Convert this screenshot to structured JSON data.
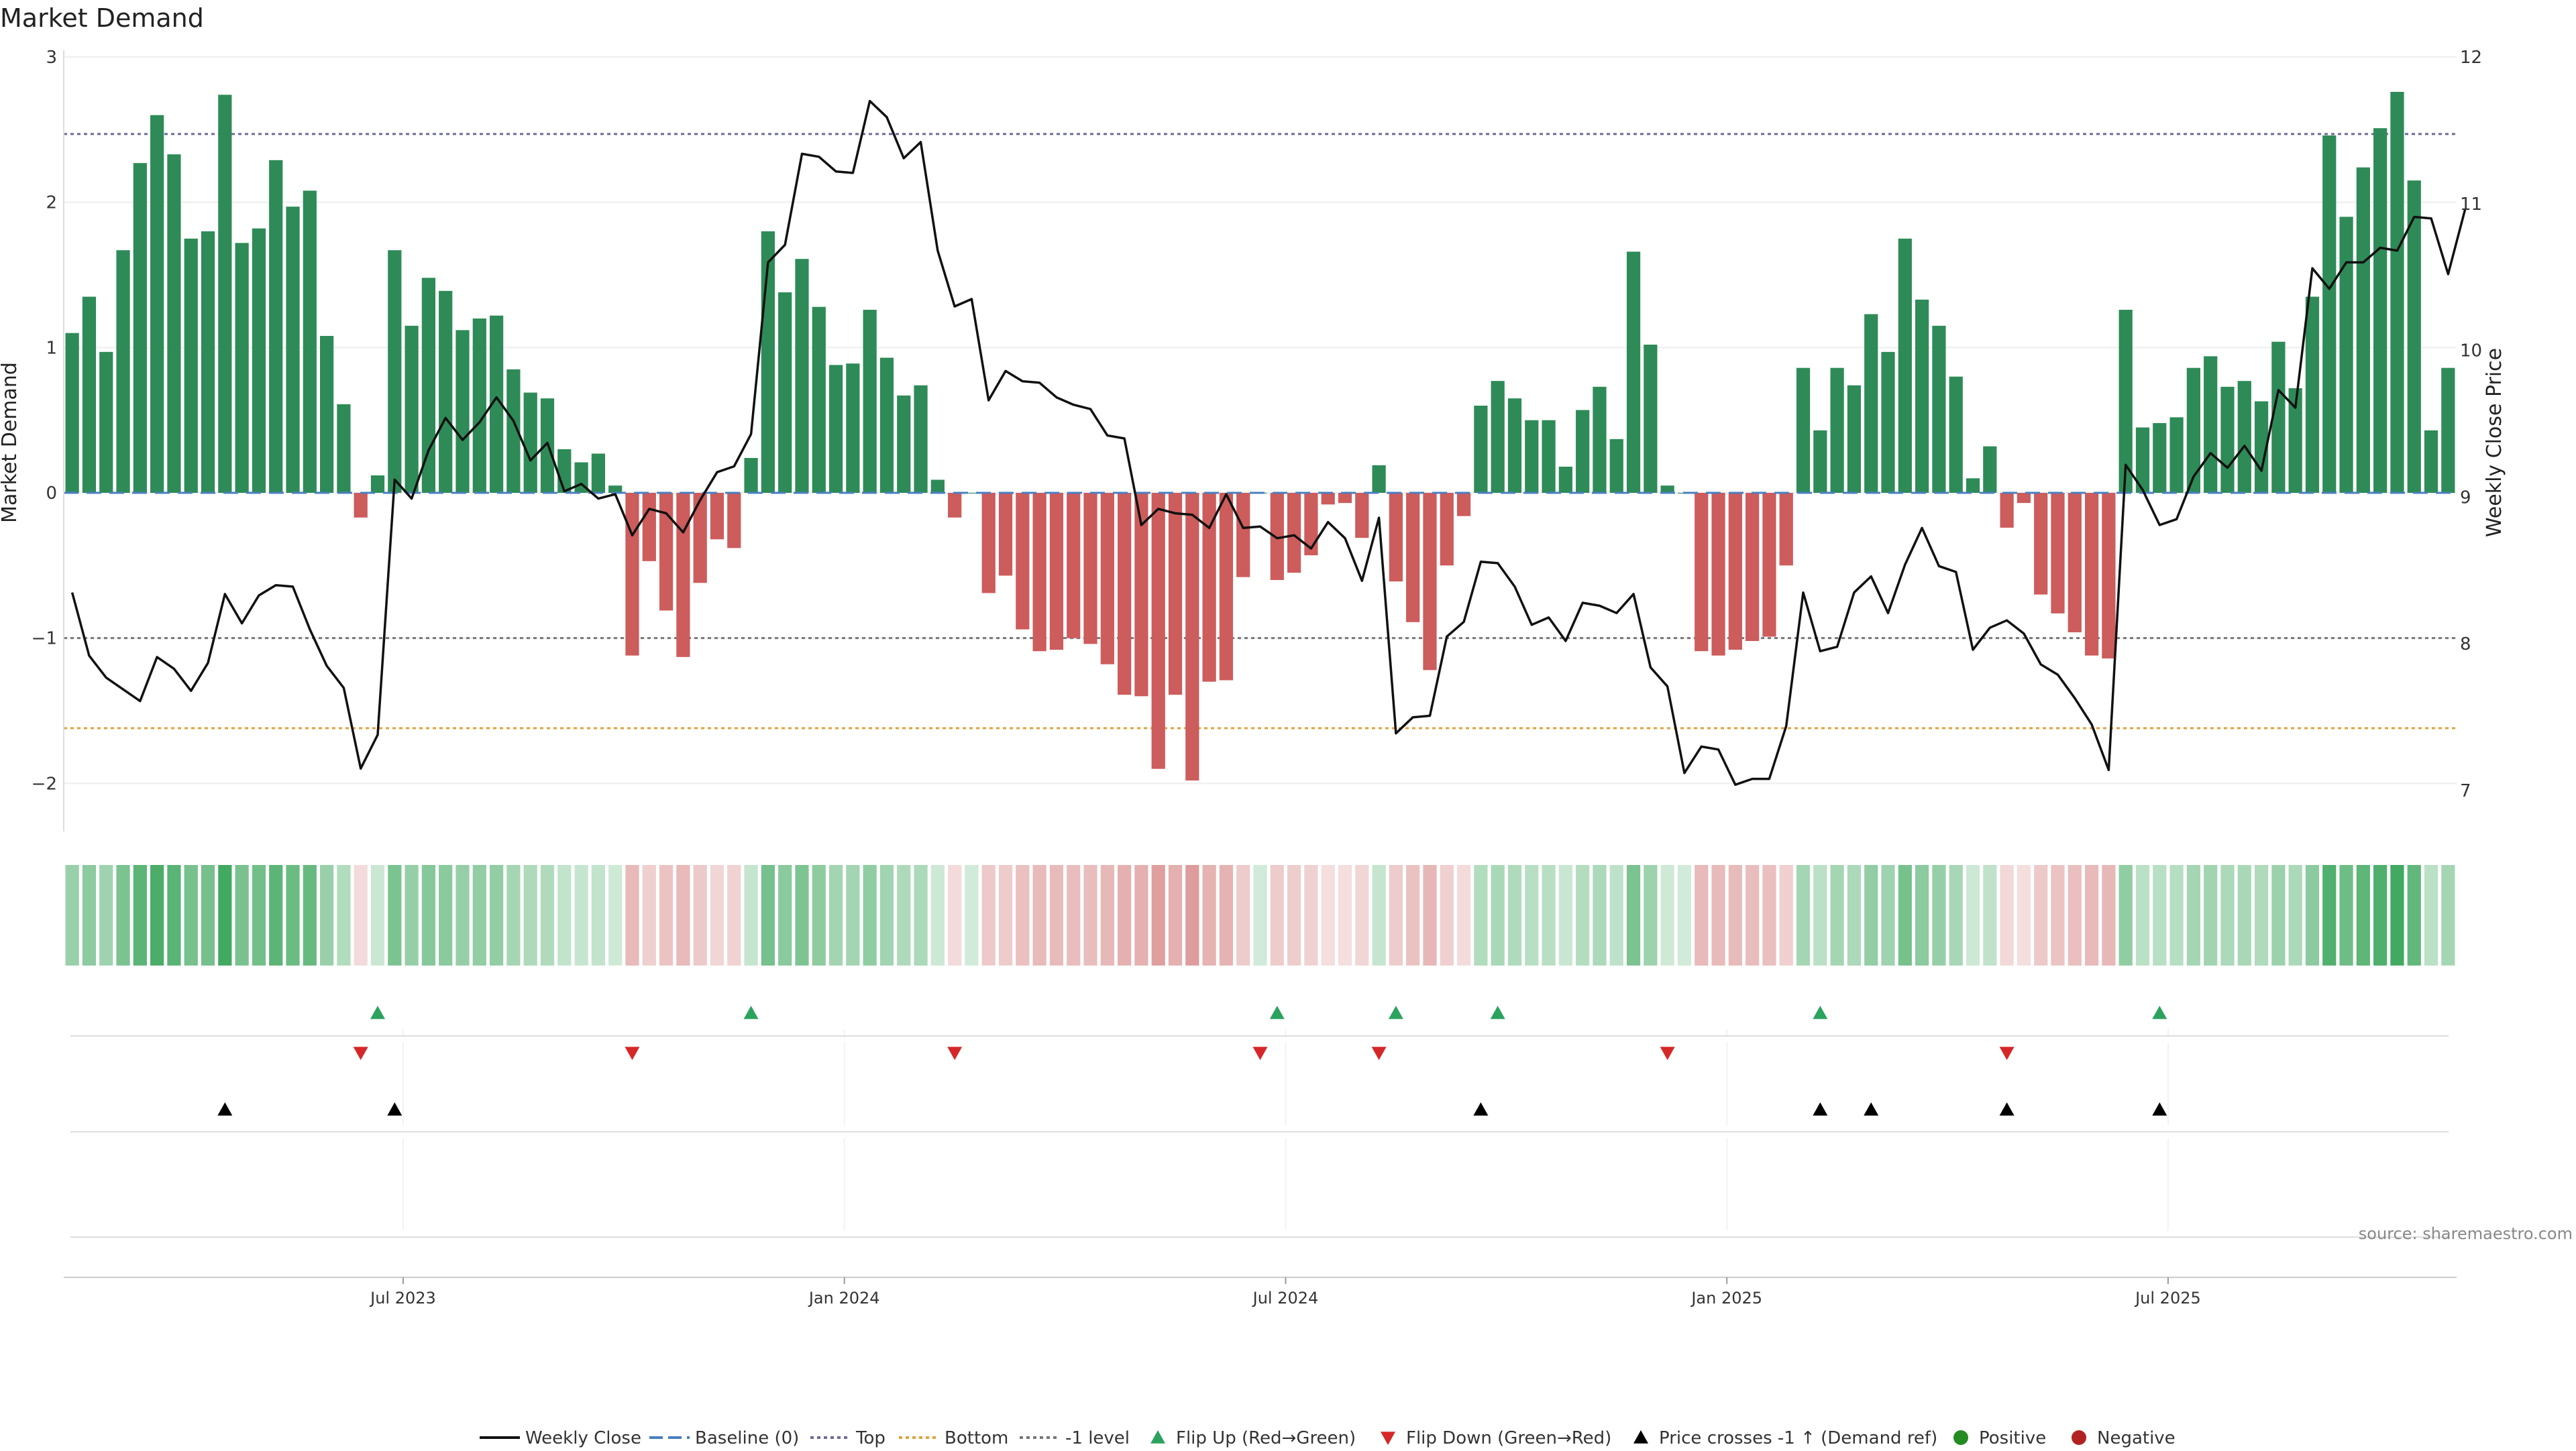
{
  "chart_data": {
    "type": "bar",
    "title": "Market Demand",
    "ylabel": "Market Demand",
    "y2label": "Weekly Close Price",
    "ylim": [
      -2.1,
      3.0
    ],
    "y2lim": [
      6.95,
      12.0
    ],
    "yticks": [
      "3",
      "2",
      "1",
      "0",
      "−1",
      "−2"
    ],
    "y2ticks": [
      "12",
      "11",
      "10",
      "9",
      "8",
      "7"
    ],
    "xticks": [
      "Jul 2023",
      "Jan 2024",
      "Jul 2024",
      "Jan 2025",
      "Jul 2025"
    ],
    "reference_lines": {
      "top": 2.47,
      "bottom": -1.62,
      "minus_one": -1.0,
      "baseline": 0
    },
    "demand": [
      1.1,
      1.35,
      0.97,
      1.67,
      2.27,
      2.6,
      2.33,
      1.75,
      1.8,
      2.74,
      1.72,
      1.82,
      2.29,
      1.97,
      2.08,
      1.08,
      0.61,
      -0.17,
      0.12,
      1.67,
      1.15,
      1.48,
      1.39,
      1.12,
      1.2,
      1.22,
      0.85,
      0.69,
      0.65,
      0.3,
      0.21,
      0.27,
      0.05,
      -1.12,
      -0.47,
      -0.81,
      -1.13,
      -0.62,
      -0.32,
      -0.38,
      0.24,
      1.8,
      1.38,
      1.61,
      1.28,
      0.88,
      0.89,
      1.26,
      0.93,
      0.67,
      0.74,
      0.09,
      -0.17,
      0.0,
      -0.69,
      -0.57,
      -0.94,
      -1.09,
      -1.08,
      -1.0,
      -1.04,
      -1.18,
      -1.39,
      -1.4,
      -1.9,
      -1.39,
      -1.98,
      -1.3,
      -1.29,
      -0.58,
      0.0,
      -0.6,
      -0.55,
      -0.43,
      -0.08,
      -0.07,
      -0.31,
      0.19,
      -0.61,
      -0.89,
      -1.22,
      -0.5,
      -0.16,
      0.6,
      0.77,
      0.65,
      0.5,
      0.5,
      0.18,
      0.57,
      0.73,
      0.37,
      1.66,
      1.02,
      0.05,
      0.0,
      -1.09,
      -1.12,
      -1.08,
      -1.02,
      -0.99,
      -0.5,
      0.86,
      0.43,
      0.86,
      0.74,
      1.23,
      0.97,
      1.75,
      1.33,
      1.15,
      0.8,
      0.1,
      0.32,
      -0.24,
      -0.07,
      -0.7,
      -0.83,
      -0.96,
      -1.12,
      -1.14,
      1.26,
      0.45,
      0.48,
      0.52,
      0.86,
      0.94,
      0.73,
      0.77,
      0.63,
      1.04,
      0.72,
      1.35,
      2.46,
      1.9,
      2.24,
      2.51,
      2.76,
      2.15,
      0.43,
      0.86
    ],
    "weekly_close": [
      8.35,
      7.92,
      7.77,
      7.69,
      7.61,
      7.91,
      7.83,
      7.68,
      7.87,
      8.34,
      8.14,
      8.33,
      8.4,
      8.39,
      8.1,
      7.85,
      7.7,
      7.15,
      7.38,
      9.12,
      8.99,
      9.32,
      9.54,
      9.39,
      9.51,
      9.68,
      9.52,
      9.25,
      9.37,
      9.04,
      9.09,
      8.99,
      9.02,
      8.74,
      8.92,
      8.89,
      8.76,
      8.98,
      9.17,
      9.21,
      9.43,
      10.6,
      10.72,
      11.34,
      11.32,
      11.22,
      11.21,
      11.7,
      11.59,
      11.31,
      11.42,
      10.68,
      10.3,
      10.35,
      9.66,
      9.86,
      9.79,
      9.78,
      9.68,
      9.63,
      9.6,
      9.42,
      9.4,
      8.81,
      8.92,
      8.89,
      8.88,
      8.79,
      9.02,
      8.79,
      8.8,
      8.72,
      8.74,
      8.65,
      8.83,
      8.72,
      8.43,
      8.86,
      7.39,
      7.5,
      7.51,
      8.05,
      8.15,
      8.56,
      8.55,
      8.39,
      8.13,
      8.18,
      8.02,
      8.28,
      8.26,
      8.21,
      8.34,
      7.84,
      7.71,
      7.12,
      7.3,
      7.28,
      7.04,
      7.08,
      7.08,
      7.44,
      8.35,
      7.95,
      7.98,
      8.35,
      8.46,
      8.21,
      8.54,
      8.79,
      8.53,
      8.49,
      7.96,
      8.11,
      8.16,
      8.07,
      7.86,
      7.79,
      7.63,
      7.45,
      7.14,
      9.22,
      9.05,
      8.81,
      8.85,
      9.14,
      9.3,
      9.2,
      9.35,
      9.18,
      9.73,
      9.61,
      10.56,
      10.42,
      10.6,
      10.6,
      10.7,
      10.68,
      10.91,
      10.9,
      10.52,
      10.96
    ],
    "flip_up_weeks": [
      18,
      40,
      71,
      78,
      84,
      103,
      123
    ],
    "flip_down_weeks": [
      17,
      33,
      52,
      70,
      77,
      94,
      114
    ],
    "price_cross_weeks": [
      9,
      19,
      83,
      103,
      106,
      114,
      123
    ],
    "legend": [
      "Weekly Close",
      "Baseline (0)",
      "Top",
      "Bottom",
      "-1 level",
      "Flip Up (Red→Green)",
      "Flip Down (Green→Red)",
      "Price crosses -1 ↑ (Demand ref)",
      "Positive",
      "Negative"
    ],
    "source": "source: sharemaestro.com",
    "colors": {
      "positive": "#2e8b57",
      "negative": "#cd5c5c",
      "price": "#111111",
      "top": "#6b6b9a",
      "bottom": "#e0a23b",
      "minus_one": "#777777",
      "baseline": "#4a7fc0",
      "flip_up": "#2ca25f",
      "flip_down": "#d62728",
      "cross": "#000000",
      "legend_positive": "#228b22",
      "legend_negative": "#b22222"
    }
  }
}
